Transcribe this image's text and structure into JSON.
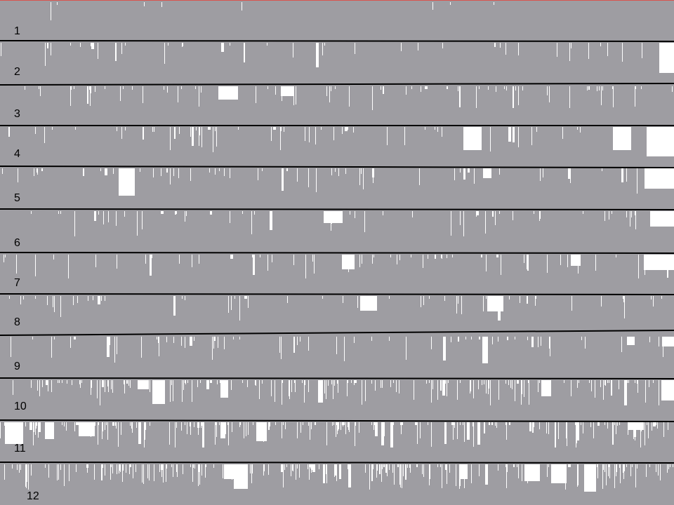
{
  "colors": {
    "fill": "#9e9da2",
    "gap": "#ffffff",
    "separator": "#000000",
    "frame": "#d9534f"
  },
  "rows": [
    {
      "label": "1",
      "density": 0.02,
      "seed": 11
    },
    {
      "label": "2",
      "density": 0.1,
      "seed": 22
    },
    {
      "label": "3",
      "density": 0.18,
      "seed": 33
    },
    {
      "label": "4",
      "density": 0.16,
      "seed": 44
    },
    {
      "label": "5",
      "density": 0.16,
      "seed": 55
    },
    {
      "label": "6",
      "density": 0.14,
      "seed": 66
    },
    {
      "label": "7",
      "density": 0.16,
      "seed": 77
    },
    {
      "label": "8",
      "density": 0.15,
      "seed": 88
    },
    {
      "label": "9",
      "density": 0.17,
      "seed": 99
    },
    {
      "label": "10",
      "density": 0.45,
      "seed": 110
    },
    {
      "label": "11",
      "density": 0.55,
      "seed": 121
    },
    {
      "label": "12",
      "density": 0.6,
      "seed": 132
    }
  ]
}
